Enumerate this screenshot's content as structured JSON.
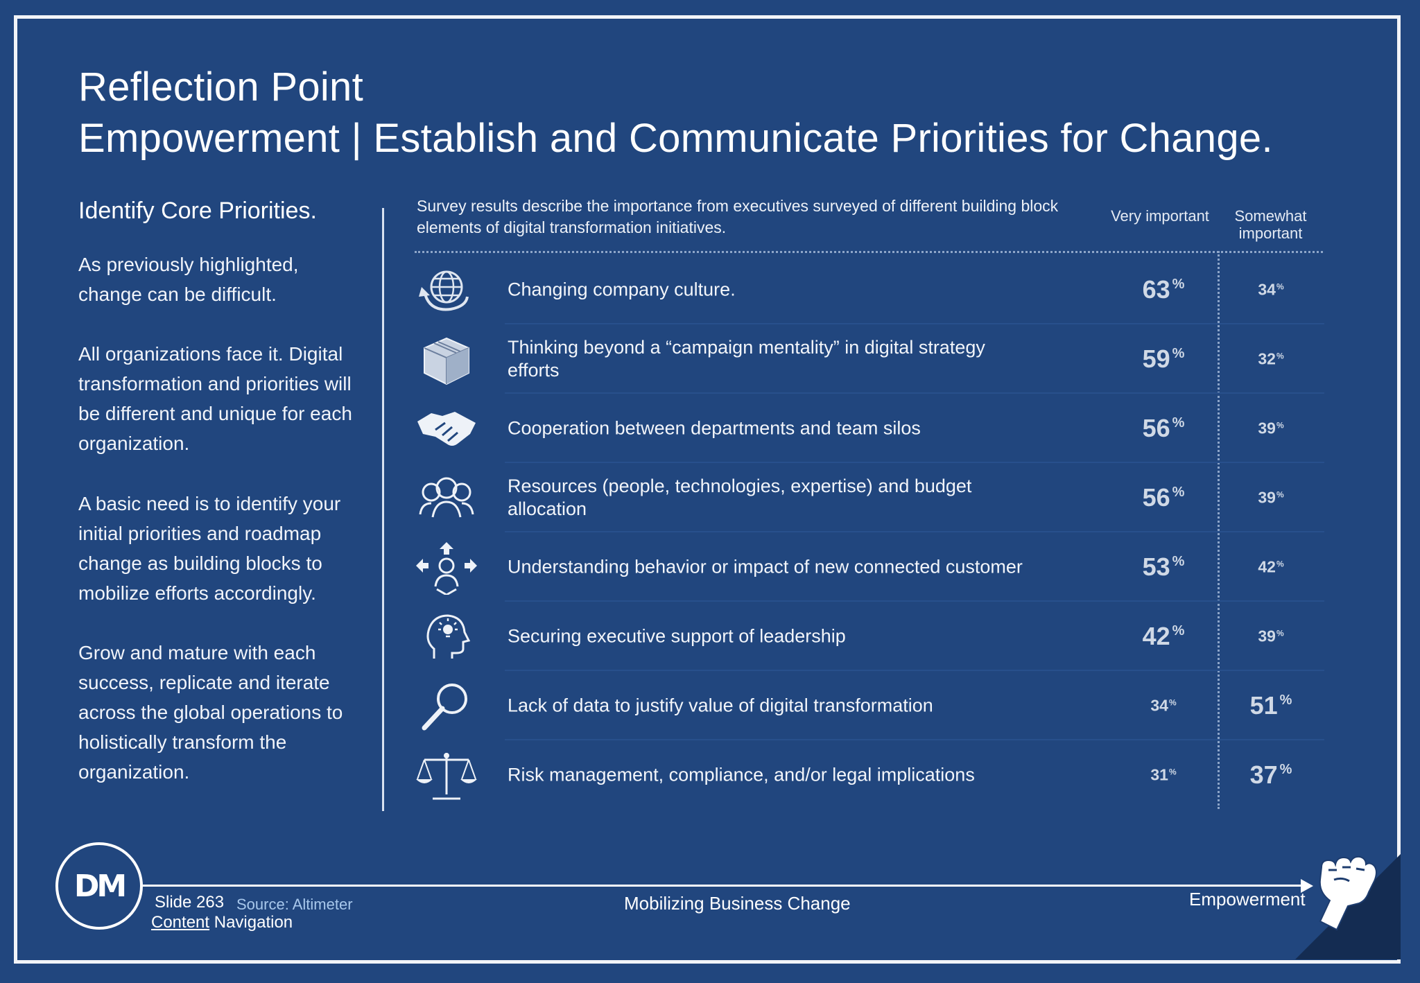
{
  "title": {
    "line1": "Reflection Point",
    "line2": "Empowerment | Establish and Communicate Priorities for Change."
  },
  "left": {
    "heading": "Identify Core Priorities.",
    "paragraphs": [
      "As previously highlighted, change can be difficult.",
      "All organizations face it. Digital transformation and priorities will be different and unique for each organization.",
      "A basic need is to identify your initial priorities and roadmap change as building blocks to mobilize efforts accordingly.",
      "Grow and mature with each success, replicate and iterate across the global operations to holistically transform the organization."
    ]
  },
  "survey": {
    "intro": "Survey results describe the importance from executives surveyed of different building block elements of digital transformation initiatives.",
    "col_very": "Very important",
    "col_somewhat": "Somewhat important",
    "percent_symbol": "%",
    "rows": [
      {
        "icon": "globe-icon",
        "label": "Changing company culture.",
        "very": "63",
        "somewhat": "34",
        "emphasis": "very"
      },
      {
        "icon": "box-icon",
        "label": "Thinking beyond a “campaign mentality” in digital strategy efforts",
        "very": "59",
        "somewhat": "32",
        "emphasis": "very"
      },
      {
        "icon": "handshake-icon",
        "label": "Cooperation between departments and team silos",
        "very": "56",
        "somewhat": "39",
        "emphasis": "very"
      },
      {
        "icon": "people-icon",
        "label": "Resources (people, technologies, expertise) and budget allocation",
        "very": "56",
        "somewhat": "39",
        "emphasis": "very"
      },
      {
        "icon": "customer-arrows-icon",
        "label": "Understanding behavior or impact of new connected customer",
        "very": "53",
        "somewhat": "42",
        "emphasis": "very"
      },
      {
        "icon": "head-lightbulb-icon",
        "label": "Securing executive support of leadership",
        "very": "42",
        "somewhat": "39",
        "emphasis": "very"
      },
      {
        "icon": "magnifier-icon",
        "label": "Lack of data to justify value of digital transformation",
        "very": "34",
        "somewhat": "51",
        "emphasis": "somewhat"
      },
      {
        "icon": "scales-icon",
        "label": "Risk management, compliance, and/or legal implications",
        "very": "31",
        "somewhat": "37",
        "emphasis": "somewhat"
      }
    ]
  },
  "footer": {
    "logo_text": "DM",
    "slide_label": "Slide 263",
    "source": "Source: Altimeter",
    "content_link": "Content",
    "navigation": " Navigation",
    "center": "Mobilizing Business Change",
    "right": "Empowerment",
    "right_icon": "fist-icon"
  },
  "colors": {
    "background": "#21467e",
    "frame": "#f2f4f8",
    "source_text": "#a8c8ec",
    "corner": "#142c52"
  }
}
